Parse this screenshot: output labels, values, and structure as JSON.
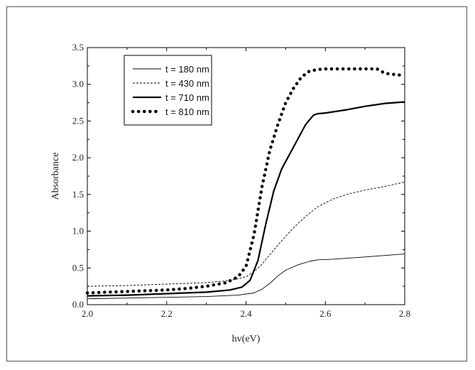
{
  "chart_data": {
    "type": "line",
    "xlabel": "hv(eV)",
    "ylabel": "Absorbance",
    "xlim": [
      2.0,
      2.8
    ],
    "ylim": [
      0.0,
      3.5
    ],
    "xticks": [
      "2.0",
      "2.2",
      "2.4",
      "2.6",
      "2.8"
    ],
    "yticks": [
      "0.0",
      "0.5",
      "1.0",
      "1.5",
      "2.0",
      "2.5",
      "3.0",
      "3.5"
    ],
    "grid": false,
    "legend_position": "top-left",
    "series": [
      {
        "name": "t = 180 nm",
        "style": "thin-solid",
        "color": "#000000",
        "x": [
          2.0,
          2.1,
          2.2,
          2.3,
          2.38,
          2.42,
          2.44,
          2.46,
          2.48,
          2.5,
          2.53,
          2.56,
          2.58,
          2.62,
          2.7,
          2.8
        ],
        "y": [
          0.08,
          0.09,
          0.1,
          0.11,
          0.13,
          0.16,
          0.21,
          0.29,
          0.39,
          0.47,
          0.54,
          0.59,
          0.61,
          0.62,
          0.65,
          0.69
        ]
      },
      {
        "name": "t = 430 nm",
        "style": "dashed",
        "color": "#000000",
        "x": [
          2.0,
          2.1,
          2.2,
          2.3,
          2.36,
          2.4,
          2.42,
          2.44,
          2.46,
          2.48,
          2.5,
          2.52,
          2.55,
          2.58,
          2.62,
          2.66,
          2.7,
          2.75,
          2.8
        ],
        "y": [
          0.25,
          0.26,
          0.28,
          0.3,
          0.33,
          0.38,
          0.45,
          0.55,
          0.68,
          0.81,
          0.93,
          1.05,
          1.2,
          1.33,
          1.44,
          1.51,
          1.56,
          1.61,
          1.67
        ]
      },
      {
        "name": "t = 710 nm",
        "style": "thick-solid",
        "color": "#000000",
        "x": [
          2.0,
          2.1,
          2.2,
          2.3,
          2.36,
          2.39,
          2.41,
          2.43,
          2.45,
          2.47,
          2.49,
          2.52,
          2.55,
          2.57,
          2.58,
          2.6,
          2.65,
          2.7,
          2.75,
          2.8
        ],
        "y": [
          0.12,
          0.13,
          0.15,
          0.17,
          0.2,
          0.24,
          0.33,
          0.6,
          1.1,
          1.55,
          1.85,
          2.15,
          2.45,
          2.58,
          2.6,
          2.61,
          2.65,
          2.7,
          2.74,
          2.76
        ]
      },
      {
        "name": "t = 810 nm",
        "style": "dotted",
        "color": "#000000",
        "x": [
          2.0,
          2.05,
          2.1,
          2.15,
          2.2,
          2.25,
          2.3,
          2.35,
          2.38,
          2.4,
          2.42,
          2.44,
          2.46,
          2.48,
          2.5,
          2.52,
          2.54,
          2.56,
          2.58,
          2.6,
          2.63,
          2.66,
          2.7,
          2.73,
          2.75,
          2.78,
          2.8
        ],
        "y": [
          0.16,
          0.17,
          0.18,
          0.19,
          0.2,
          0.22,
          0.25,
          0.3,
          0.38,
          0.52,
          0.95,
          1.6,
          2.1,
          2.45,
          2.75,
          2.95,
          3.1,
          3.18,
          3.2,
          3.21,
          3.21,
          3.21,
          3.21,
          3.21,
          3.15,
          3.13,
          3.12
        ]
      }
    ]
  }
}
